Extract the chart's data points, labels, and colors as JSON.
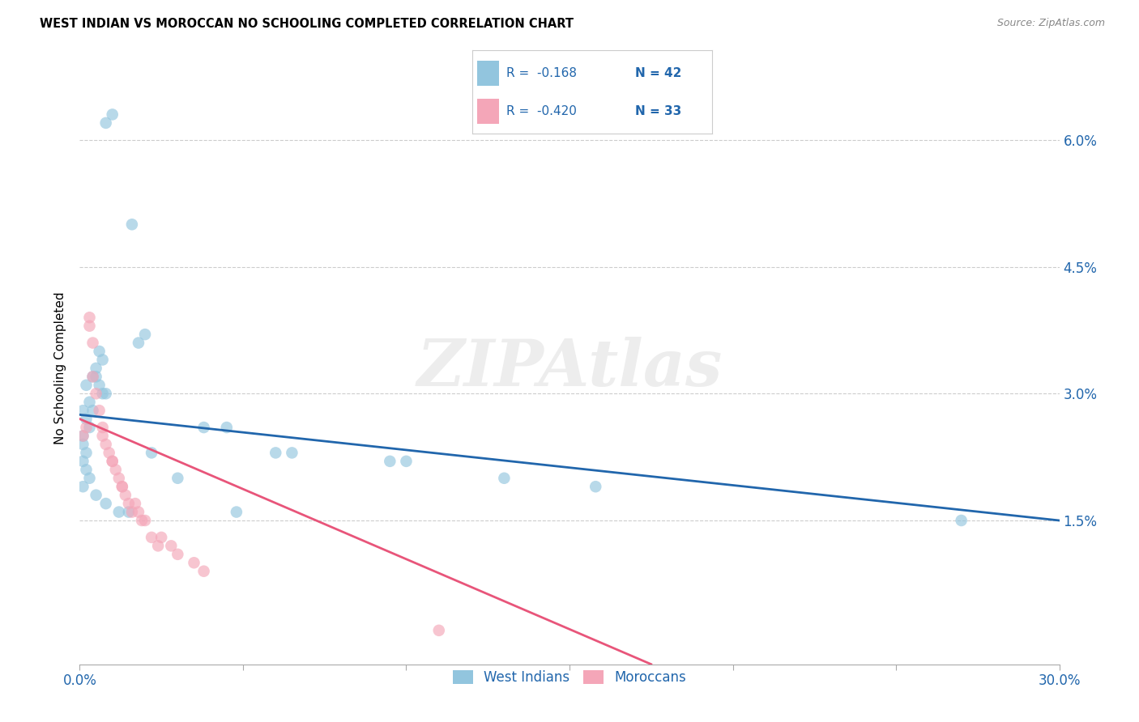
{
  "title": "WEST INDIAN VS MOROCCAN NO SCHOOLING COMPLETED CORRELATION CHART",
  "source": "Source: ZipAtlas.com",
  "ylabel": "No Schooling Completed",
  "watermark": "ZIPAtlas",
  "x_min": 0.0,
  "x_max": 0.3,
  "y_min": -0.002,
  "y_max": 0.068,
  "y_ticks": [
    0.015,
    0.03,
    0.045,
    0.06
  ],
  "y_tick_labels": [
    "1.5%",
    "3.0%",
    "4.5%",
    "6.0%"
  ],
  "x_ticks": [
    0.0,
    0.05,
    0.1,
    0.15,
    0.2,
    0.25,
    0.3
  ],
  "legend_r1": "R =  -0.168",
  "legend_n1": "N = 42",
  "legend_r2": "R =  -0.420",
  "legend_n2": "N = 33",
  "legend_label1": "West Indians",
  "legend_label2": "Moroccans",
  "blue_color": "#92c5de",
  "pink_color": "#f4a6b8",
  "blue_line_color": "#2166ac",
  "pink_line_color": "#e8557a",
  "legend_text_color": "#2166ac",
  "blue_line_x0": 0.0,
  "blue_line_y0": 0.0275,
  "blue_line_x1": 0.3,
  "blue_line_y1": 0.015,
  "pink_line_x0": 0.0,
  "pink_line_y0": 0.027,
  "pink_line_x1": 0.175,
  "pink_line_y1": -0.002,
  "west_indians_x": [
    0.008,
    0.01,
    0.016,
    0.002,
    0.004,
    0.005,
    0.006,
    0.007,
    0.008,
    0.003,
    0.004,
    0.001,
    0.002,
    0.003,
    0.001,
    0.001,
    0.002,
    0.001,
    0.002,
    0.003,
    0.001,
    0.005,
    0.007,
    0.006,
    0.018,
    0.02,
    0.038,
    0.045,
    0.06,
    0.065,
    0.095,
    0.1,
    0.13,
    0.158,
    0.27,
    0.005,
    0.008,
    0.012,
    0.015,
    0.022,
    0.03,
    0.048
  ],
  "west_indians_y": [
    0.062,
    0.063,
    0.05,
    0.031,
    0.032,
    0.032,
    0.031,
    0.03,
    0.03,
    0.029,
    0.028,
    0.028,
    0.027,
    0.026,
    0.025,
    0.024,
    0.023,
    0.022,
    0.021,
    0.02,
    0.019,
    0.033,
    0.034,
    0.035,
    0.036,
    0.037,
    0.026,
    0.026,
    0.023,
    0.023,
    0.022,
    0.022,
    0.02,
    0.019,
    0.015,
    0.018,
    0.017,
    0.016,
    0.016,
    0.023,
    0.02,
    0.016
  ],
  "moroccans_x": [
    0.001,
    0.002,
    0.003,
    0.003,
    0.004,
    0.004,
    0.005,
    0.006,
    0.007,
    0.007,
    0.008,
    0.009,
    0.01,
    0.01,
    0.011,
    0.012,
    0.013,
    0.013,
    0.014,
    0.015,
    0.016,
    0.017,
    0.018,
    0.019,
    0.02,
    0.022,
    0.024,
    0.025,
    0.028,
    0.03,
    0.035,
    0.038,
    0.11
  ],
  "moroccans_y": [
    0.025,
    0.026,
    0.038,
    0.039,
    0.036,
    0.032,
    0.03,
    0.028,
    0.026,
    0.025,
    0.024,
    0.023,
    0.022,
    0.022,
    0.021,
    0.02,
    0.019,
    0.019,
    0.018,
    0.017,
    0.016,
    0.017,
    0.016,
    0.015,
    0.015,
    0.013,
    0.012,
    0.013,
    0.012,
    0.011,
    0.01,
    0.009,
    0.002
  ]
}
